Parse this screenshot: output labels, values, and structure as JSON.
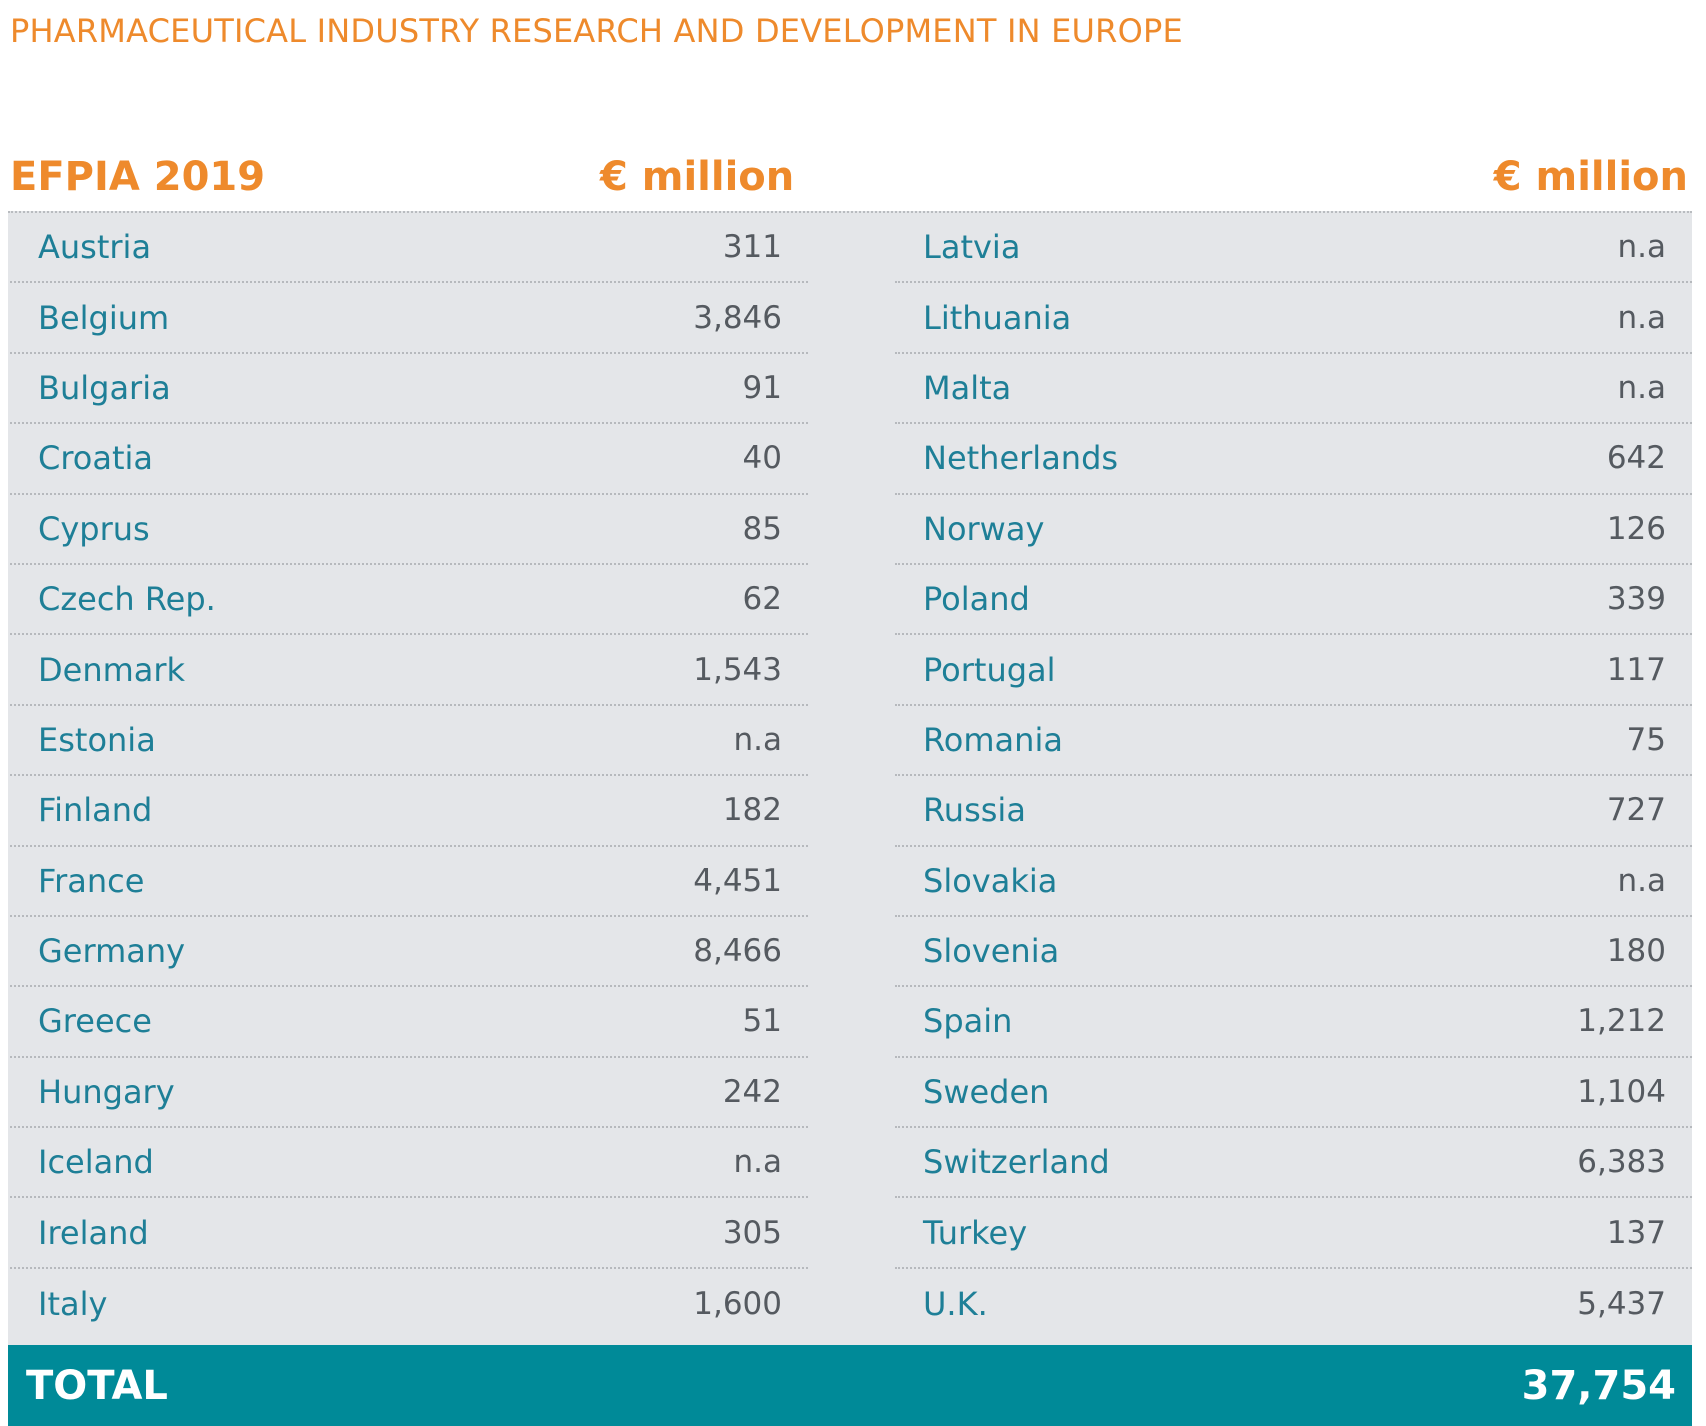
{
  "title": "PHARMACEUTICAL INDUSTRY RESEARCH AND DEVELOPMENT IN EUROPE",
  "header": {
    "label": "EFPIA 2019",
    "unit_left": "€ million",
    "unit_right": "€ million"
  },
  "left_rows": [
    {
      "country": "Austria",
      "value": "311"
    },
    {
      "country": "Belgium",
      "value": "3,846"
    },
    {
      "country": "Bulgaria",
      "value": "91"
    },
    {
      "country": "Croatia",
      "value": "40"
    },
    {
      "country": "Cyprus",
      "value": "85"
    },
    {
      "country": "Czech Rep.",
      "value": "62"
    },
    {
      "country": "Denmark",
      "value": "1,543"
    },
    {
      "country": "Estonia",
      "value": "n.a"
    },
    {
      "country": "Finland",
      "value": "182"
    },
    {
      "country": "France",
      "value": "4,451"
    },
    {
      "country": "Germany",
      "value": "8,466"
    },
    {
      "country": "Greece",
      "value": "51"
    },
    {
      "country": "Hungary",
      "value": "242"
    },
    {
      "country": "Iceland",
      "value": "n.a"
    },
    {
      "country": "Ireland",
      "value": "305"
    },
    {
      "country": "Italy",
      "value": "1,600"
    }
  ],
  "right_rows": [
    {
      "country": "Latvia",
      "value": "n.a"
    },
    {
      "country": "Lithuania",
      "value": "n.a"
    },
    {
      "country": "Malta",
      "value": "n.a"
    },
    {
      "country": "Netherlands",
      "value": "642"
    },
    {
      "country": "Norway",
      "value": "126"
    },
    {
      "country": "Poland",
      "value": "339"
    },
    {
      "country": "Portugal",
      "value": "117"
    },
    {
      "country": "Romania",
      "value": "75"
    },
    {
      "country": "Russia",
      "value": "727"
    },
    {
      "country": "Slovakia",
      "value": "n.a"
    },
    {
      "country": "Slovenia",
      "value": "180"
    },
    {
      "country": "Spain",
      "value": "1,212"
    },
    {
      "country": "Sweden",
      "value": "1,104"
    },
    {
      "country": "Switzerland",
      "value": "6,383"
    },
    {
      "country": "Turkey",
      "value": "137"
    },
    {
      "country": "U.K.",
      "value": "5,437"
    }
  ],
  "total": {
    "label": "TOTAL",
    "value": "37,754"
  },
  "colors": {
    "accent_orange": "#ee8a2c",
    "country_text": "#1e7f97",
    "value_text": "#555a60",
    "panel_bg": "#e4e6e9",
    "total_bg": "#008a98"
  }
}
